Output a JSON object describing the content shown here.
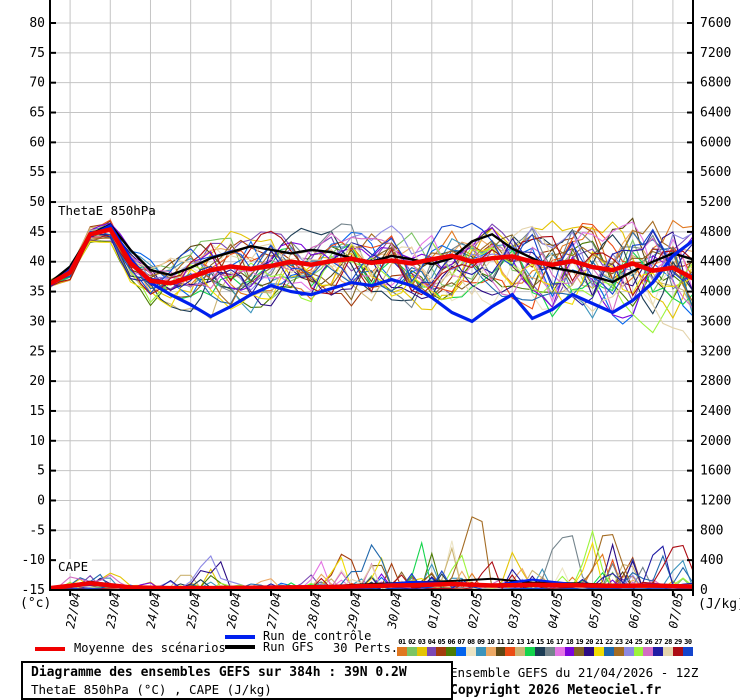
{
  "legend": {
    "mean_label": "Moyenne des scénarios",
    "control_label": "Run de contrôle",
    "gfs_label": "Run GFS",
    "perts_label": "30 Perts."
  },
  "title_box": {
    "title": "Diagramme des ensembles GEFS sur 384h : 39N 0.2W",
    "subtitle": "ThetaE 850hPa (°C) , CAPE (J/kg)"
  },
  "credits": {
    "run_info": "Ensemble GEFS du 21/04/2026 - 12Z",
    "copyright": "Copyright 2026 Meteociel.fr"
  },
  "chart_data": {
    "type": "line",
    "inside_labels": {
      "theta": "ThetaE 850hPa",
      "cape": "CAPE"
    },
    "x_axis": {
      "total_hours": 384,
      "first_tick_hour": 12,
      "tick_step_hours": 24,
      "tick_labels": [
        "22/04",
        "23/04",
        "24/04",
        "25/04",
        "26/04",
        "27/04",
        "28/04",
        "29/04",
        "30/04",
        "01/05",
        "02/05",
        "03/05",
        "04/05",
        "05/05",
        "06/05",
        "07/05"
      ]
    },
    "y_left": {
      "label": "(°c)",
      "min": -15,
      "max": 80,
      "step": 5,
      "ticks": [
        80,
        75,
        70,
        65,
        60,
        55,
        50,
        45,
        40,
        35,
        30,
        25,
        20,
        15,
        10,
        5,
        0,
        -5,
        -10,
        -15
      ]
    },
    "y_right": {
      "label": "(J/kg)",
      "min": 0,
      "max": 7600,
      "step": 400,
      "ticks": [
        7600,
        7200,
        6800,
        6400,
        6000,
        5600,
        5200,
        4800,
        4400,
        4000,
        3600,
        3200,
        2800,
        2400,
        2000,
        1600,
        1200,
        800,
        400,
        0
      ]
    },
    "colors": {
      "mean": "#f00000",
      "control": "#0020ee",
      "gfs": "#000000",
      "grid": "#c4c4c4",
      "axis": "#000000",
      "background": "#ffffff"
    },
    "sample_step_hours": 12,
    "theta": {
      "mean": [
        36.3,
        38.2,
        44.6,
        45.4,
        39.8,
        36.8,
        36.4,
        37.4,
        38.6,
        39.2,
        38.8,
        39.3,
        40.0,
        39.5,
        40.1,
        40.5,
        39.8,
        40.2,
        39.7,
        40.4,
        41.0,
        40.0,
        40.6,
        40.9,
        40.0,
        39.5,
        40.1,
        39.1,
        38.6,
        39.7,
        38.5,
        39.0,
        37.2
      ],
      "control": [
        36.0,
        38.6,
        44.3,
        46.0,
        40.5,
        36.5,
        34.5,
        32.8,
        30.8,
        32.5,
        34.5,
        36.0,
        35.0,
        34.5,
        35.5,
        36.5,
        36.0,
        37.0,
        36.0,
        34.0,
        31.5,
        30.0,
        32.5,
        34.5,
        30.5,
        32.0,
        34.5,
        33.0,
        31.5,
        33.5,
        36.5,
        41.0,
        43.5
      ],
      "gfs": [
        36.5,
        39.2,
        44.6,
        46.2,
        42.0,
        38.6,
        37.8,
        39.0,
        40.6,
        41.6,
        42.6,
        42.0,
        41.4,
        42.0,
        41.6,
        40.6,
        40.0,
        41.0,
        40.4,
        39.6,
        40.6,
        43.4,
        44.6,
        42.2,
        40.6,
        39.0,
        38.4,
        37.6,
        36.6,
        38.4,
        40.0,
        41.4,
        40.4
      ],
      "ensemble_spread": [
        0.8,
        1.0,
        1.2,
        1.5,
        2.2,
        3.0,
        3.8,
        4.5,
        5.2,
        5.5,
        5.5,
        5.2,
        5.0,
        4.8,
        5.0,
        5.2,
        5.0,
        5.2,
        5.4,
        5.6,
        5.8,
        5.6,
        5.8,
        6.0,
        6.2,
        6.4,
        6.6,
        6.8,
        7.0,
        7.2,
        7.2,
        7.4,
        7.6
      ]
    },
    "cape": {
      "sample_step_hours": 24,
      "mean": [
        25,
        90,
        35,
        25,
        25,
        30,
        35,
        40,
        55,
        65,
        80,
        60,
        70,
        65,
        55,
        60,
        45
      ],
      "control": [
        20,
        70,
        30,
        20,
        20,
        25,
        30,
        45,
        60,
        110,
        90,
        60,
        140,
        80,
        60,
        80,
        45
      ],
      "gfs": [
        25,
        110,
        40,
        25,
        20,
        30,
        40,
        55,
        80,
        100,
        120,
        150,
        100,
        90,
        70,
        50,
        40
      ],
      "ensemble_spread": [
        40,
        200,
        60,
        80,
        280,
        60,
        120,
        260,
        380,
        420,
        720,
        520,
        420,
        460,
        520,
        420,
        350
      ]
    },
    "members": [
      {
        "id": "01",
        "color": "#e07820"
      },
      {
        "id": "02",
        "color": "#7cc464"
      },
      {
        "id": "03",
        "color": "#e4c404"
      },
      {
        "id": "04",
        "color": "#7c48b4"
      },
      {
        "id": "05",
        "color": "#a43c0c"
      },
      {
        "id": "06",
        "color": "#4c7c04"
      },
      {
        "id": "07",
        "color": "#0464ec"
      },
      {
        "id": "08",
        "color": "#ece4c4"
      },
      {
        "id": "09",
        "color": "#3c94bc"
      },
      {
        "id": "10",
        "color": "#eca864"
      },
      {
        "id": "11",
        "color": "#5c4814"
      },
      {
        "id": "12",
        "color": "#ec4c14"
      },
      {
        "id": "13",
        "color": "#ccb474"
      },
      {
        "id": "14",
        "color": "#14d44c"
      },
      {
        "id": "15",
        "color": "#1c3c54"
      },
      {
        "id": "16",
        "color": "#74848c"
      },
      {
        "id": "17",
        "color": "#e474e4"
      },
      {
        "id": "18",
        "color": "#7c04dc"
      },
      {
        "id": "19",
        "color": "#846424"
      },
      {
        "id": "20",
        "color": "#2c0c84"
      },
      {
        "id": "21",
        "color": "#f0dc04"
      },
      {
        "id": "22",
        "color": "#2068ac"
      },
      {
        "id": "23",
        "color": "#a46c24"
      },
      {
        "id": "24",
        "color": "#8c88e4"
      },
      {
        "id": "25",
        "color": "#9cf43c"
      },
      {
        "id": "26",
        "color": "#d46cc4"
      },
      {
        "id": "27",
        "color": "#201ca4"
      },
      {
        "id": "28",
        "color": "#e4d4ac"
      },
      {
        "id": "29",
        "color": "#ac0c14"
      },
      {
        "id": "30",
        "color": "#1444cc"
      }
    ]
  }
}
